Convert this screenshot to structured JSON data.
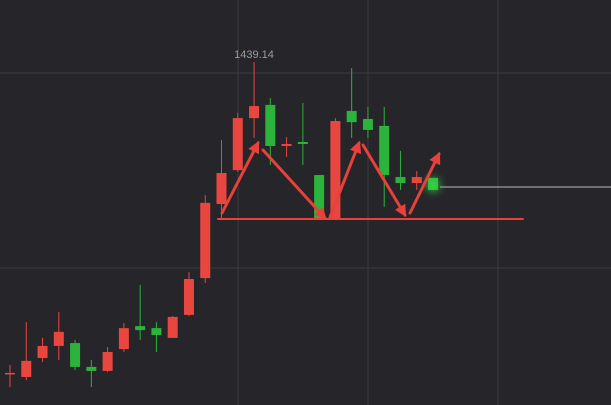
{
  "chart_data": {
    "type": "candlestick",
    "categories": [
      null,
      null,
      null,
      null,
      null,
      null,
      null,
      null,
      null,
      null,
      null,
      null,
      null,
      null,
      null,
      null,
      null,
      null,
      null,
      null,
      null,
      null,
      null,
      null,
      null,
      null,
      null
    ],
    "open": [
      1330.5,
      1329.5,
      1336.1,
      1340.3,
      1341.3,
      1333.0,
      1331.6,
      1339.2,
      1347.2,
      1346.5,
      1343.1,
      1351.1,
      1363.9,
      1389.7,
      1401.5,
      1419.6,
      1424.2,
      1409.9,
      1411.3,
      1399.8,
      1384.5,
      1422.1,
      1419.3,
      1416.9,
      1399.1,
      1397.0,
      1398.8
    ],
    "high": [
      1333.7,
      1348.6,
      1343.1,
      1352.1,
      1342.4,
      1335.4,
      1339.9,
      1348.3,
      1361.5,
      1348.6,
      1350.7,
      1366.0,
      1392.8,
      1412.0,
      1421.4,
      1439.14,
      1426.6,
      1413.0,
      1424.9,
      1399.8,
      1419.6,
      1437.0,
      1423.5,
      1423.5,
      1408.2,
      1401.2,
      1398.8
    ],
    "low": [
      1326.0,
      1328.4,
      1334.7,
      1335.4,
      1331.9,
      1326.0,
      1331.2,
      1338.2,
      1342.4,
      1338.2,
      1343.1,
      1350.7,
      1362.2,
      1384.8,
      1400.9,
      1412.7,
      1403.3,
      1406.1,
      1403.3,
      1384.5,
      1384.1,
      1412.7,
      1412.7,
      1388.7,
      1394.6,
      1394.6,
      1394.6
    ],
    "close": [
      1330.9,
      1335.1,
      1340.3,
      1345.2,
      1333.0,
      1331.6,
      1338.2,
      1346.5,
      1345.8,
      1344.1,
      1350.4,
      1363.6,
      1390.1,
      1400.5,
      1419.6,
      1423.8,
      1409.9,
      1410.6,
      1410.6,
      1384.5,
      1418.6,
      1418.2,
      1415.5,
      1399.8,
      1397.0,
      1399.1,
      1394.6
    ],
    "ylim": [
      1319.74,
      1460.72
    ],
    "up_color": "#e8463f",
    "down_color": "#2bb33b"
  }
}
